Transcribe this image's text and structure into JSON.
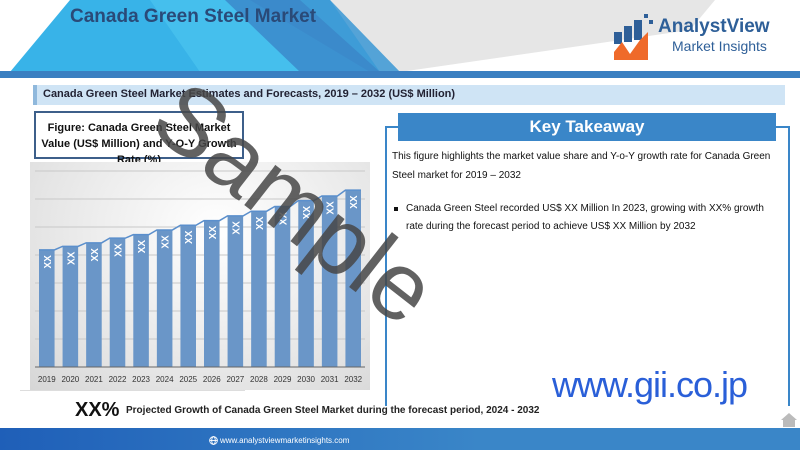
{
  "header": {
    "title": "Canada Green Steel Market",
    "logo_name": "AnalystView",
    "logo_sub": "Market Insights"
  },
  "subheader": "Canada Green Steel Market Estimates and Forecasts, 2019 – 2032 (US$ Million)",
  "figure_title": "Figure: Canada Green Steel Market Value (US$ Million) and Y-O-Y Growth Rate (%)",
  "chart_data": {
    "type": "bar",
    "title": "Canada Green Steel Market Value (US$ Million) and Y-O-Y Growth Rate (%)",
    "categories": [
      "2019",
      "2020",
      "2021",
      "2022",
      "2023",
      "2024",
      "2025",
      "2026",
      "2027",
      "2028",
      "2029",
      "2030",
      "2031",
      "2032"
    ],
    "values": [
      100,
      103,
      106,
      110,
      113,
      117,
      121,
      125,
      129,
      133,
      137,
      142,
      146,
      151
    ],
    "data_labels": [
      "XX",
      "XX",
      "XX",
      "XX",
      "XX",
      "XX",
      "XX",
      "XX",
      "XX",
      "XX",
      "XX",
      "XX",
      "XX",
      "XX"
    ],
    "ylim": [
      0,
      175
    ],
    "grid": true,
    "bar_color": "#6a96c8",
    "line_color": "#5b8fcc",
    "note": "values are illustrative relative index; labels shown as XX"
  },
  "takeaway": {
    "heading": "Key Takeaway",
    "intro": "This figure highlights the market value share and Y-o-Y growth rate for Canada Green Steel market for 2019 – 2032",
    "bullet": "Canada Green Steel recorded US$ XX Million In 2023, growing with XX% growth rate during the forecast period to achieve US$ XX Million by 2032"
  },
  "projection": {
    "value": "XX%",
    "text": "Projected Growth of Canada Green Steel Market during the forecast period, 2024 - 2032"
  },
  "footer_url": "www.analystviewmarketinsights.com",
  "watermark": "Sample",
  "gii": "www.gii.co.jp",
  "colors": {
    "accent": "#3a86c8",
    "title": "#2a4a78"
  }
}
